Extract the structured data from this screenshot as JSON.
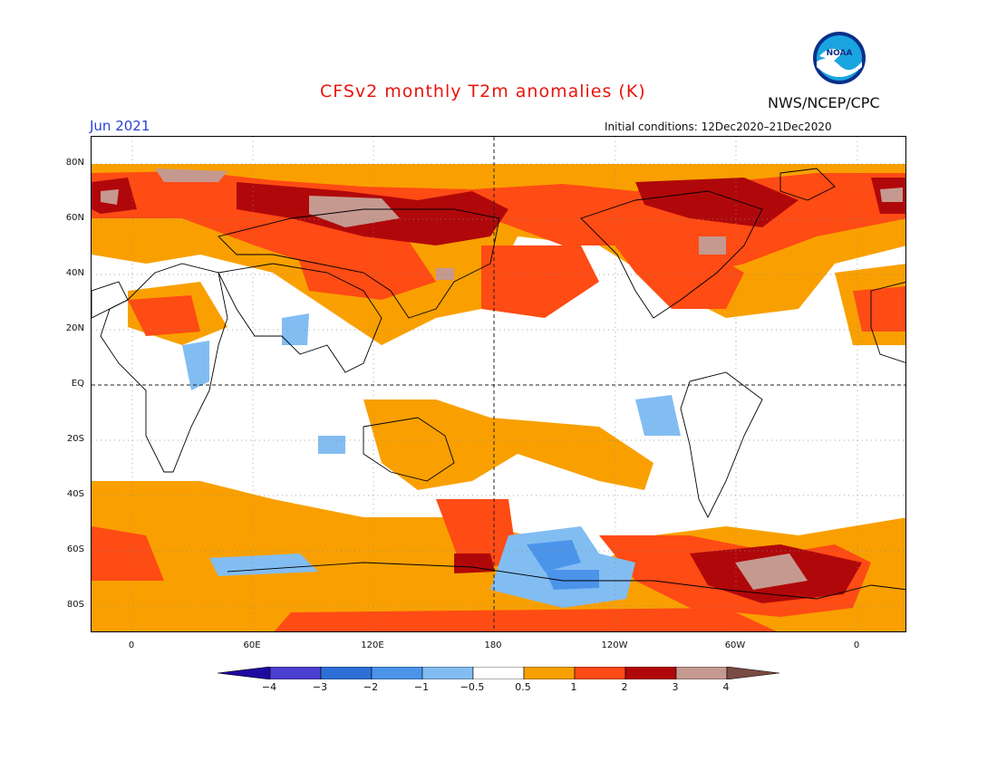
{
  "title": "CFSv2 monthly T2m anomalies (K)",
  "month": "Jun 2021",
  "agency": "NWS/NCEP/CPC",
  "init_conditions": "Initial conditions: 12Dec2020–21Dec2020",
  "logo_text": "NOAA",
  "lat_labels": [
    "80N",
    "60N",
    "40N",
    "20N",
    "EQ",
    "20S",
    "40S",
    "60S",
    "80S"
  ],
  "lon_labels": [
    "0",
    "60E",
    "120E",
    "180",
    "120W",
    "60W",
    "0"
  ],
  "colorbar": {
    "labels": [
      "−4",
      "−3",
      "−2",
      "−1",
      "−0.5",
      "0.5",
      "1",
      "2",
      "3",
      "4"
    ],
    "colors": [
      "#1e0aa0",
      "#4a3fd0",
      "#2e6fd6",
      "#4b94ea",
      "#82bdf2",
      "#ffffff",
      "#f9a000",
      "#ff4b14",
      "#b0080a",
      "#c5998f",
      "#7a4a44"
    ]
  }
}
